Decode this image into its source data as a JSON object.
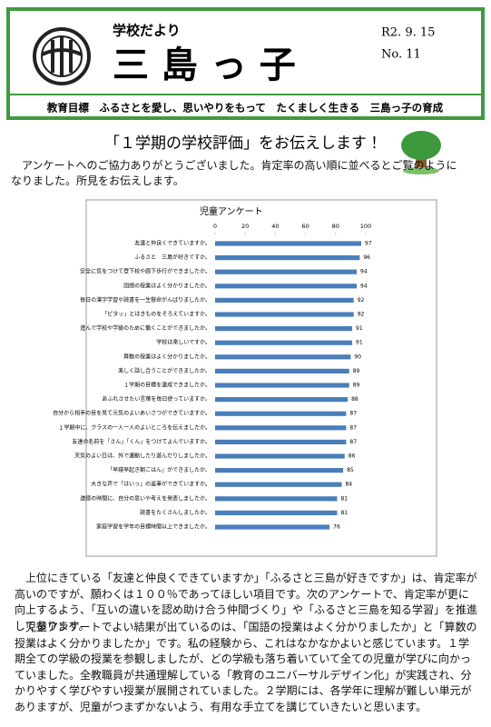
{
  "header": {
    "subtitle": "学校だより",
    "title": "三 島 っ 子",
    "date": "R2. 9. 15",
    "number": "No. 11",
    "motto": "教育目標　ふるさとを愛し、思いやりをもって　たくましく生きる　三島っ子の育成"
  },
  "heading": "「１学期の学校評価」をお伝えします！",
  "intro": "アンケートへのご協力ありがとうございました。肯定率の高い順に並べるとご覧のようになりました。所見をお伝えします。",
  "chart": {
    "type": "bar",
    "orientation": "horizontal",
    "title": "児童アンケート",
    "color": "#4a7ebb",
    "categories": [
      "友達と仲良くできていますか。",
      "ふるさと　三島が好きですか。",
      "安全に気をつけて登下校や廊下歩行ができましたか。",
      "国語の授業はよく分かりましたか。",
      "毎日の漢字学習や読書を一生懸命がんばりましたか。",
      "「ピタッ」とはきものをそろえていますか。",
      "進んで学校や学級のために働くことができましたか。",
      "学校は楽しいですか。",
      "算数の授業はよく分かりましたか。",
      "楽しく話し合うことができましたか。",
      "１学期の目標を達成できましたか。",
      "あふれさせたい言葉を毎日使っていますか。",
      "自分から相手の目を見て元気のよいあいさつができていますか。",
      "１学期中に、クラスの一人一人のよいところを伝えましたか。",
      "友達の名前を「さん」「くん」をつけてよんでいますか。",
      "天気のよい日は、外で運動したり遊んだりしましたか。",
      "「早寝早起き朝ごはん」ができましたか。",
      "大きな声で「はいっ」の返事ができていますか。",
      "道徳の時間に、自分の思いや考えを発表しましたか。",
      "読書をたくさんしましたか。",
      "家庭学習を学年の目標時間以上できましたか。"
    ],
    "values": [
      97,
      96,
      94,
      94,
      92,
      92,
      91,
      91,
      90,
      89,
      89,
      88,
      87,
      87,
      87,
      86,
      85,
      84,
      81,
      81,
      76
    ],
    "xlim": [
      0,
      100
    ],
    "xticks": [
      0,
      20,
      40,
      60,
      80,
      100
    ]
  },
  "paragraphs": [
    "上位にきている「友達と仲良くできていますか」「ふるさと三島が好きですか」は、肯定率が高いのですが、願わくは１００％であってほしい項目です。次のアンケートで、肯定率が更に向上するよう、「互いの違いを認め助け合う仲間づくり」や「ふるさと三島を知る学習」を推進して参ります。",
    "児童アンケートでよい結果が出ているのは、「国語の授業はよく分かりましたか」と「算数の授業はよく分かりましたか」です。私の経験から、これはなかなかよいと感じています。１学期全ての学級の授業を参観しましたが、どの学級も落ち着いていて全ての児童が学びに向かっていました。全教職員が共通理解している「教育のユニバーサルデザイン化」が実践され、分かりやすく学びやすい授業が展開されていました。２学期には、各学年に理解が難しい単元がありますが、児童がつまずかないよう、有用な手立てを講じていきたいと思います。"
  ]
}
